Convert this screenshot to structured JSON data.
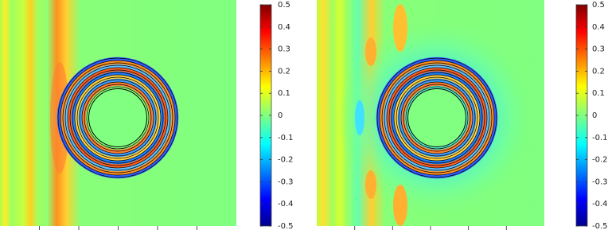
{
  "chart_data": [
    {
      "type": "field",
      "colormap": "jet",
      "clim": [
        -0.5,
        0.5
      ],
      "cticks": [
        0.5,
        0.4,
        0.3,
        0.2,
        0.1,
        0,
        -0.1,
        -0.2,
        -0.3,
        -0.4,
        -0.5
      ]
    },
    {
      "type": "field",
      "colormap": "jet",
      "clim": [
        -0.5,
        0.5
      ],
      "cticks": [
        0.5,
        0.4,
        0.3,
        0.2,
        0.1,
        0,
        -0.1,
        -0.2,
        -0.3,
        -0.4,
        -0.5
      ]
    }
  ]
}
